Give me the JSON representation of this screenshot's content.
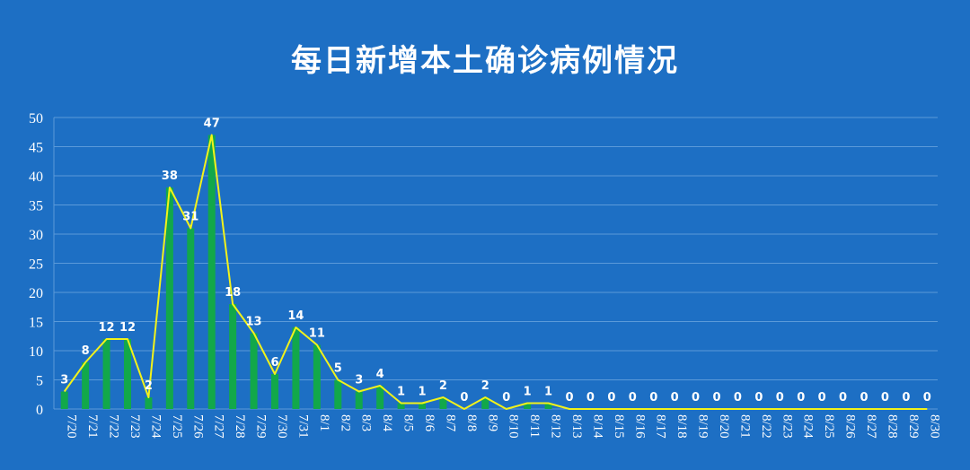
{
  "chart_data": {
    "type": "bar+line",
    "title": "每日新增本土确诊病例情况",
    "categories": [
      "7/20",
      "7/21",
      "7/22",
      "7/23",
      "7/24",
      "7/25",
      "7/26",
      "7/27",
      "7/28",
      "7/29",
      "7/30",
      "7/31",
      "8/1",
      "8/2",
      "8/3",
      "8/4",
      "8/5",
      "8/6",
      "8/7",
      "8/8",
      "8/9",
      "8/10",
      "8/11",
      "8/12",
      "8/13",
      "8/14",
      "8/15",
      "8/16",
      "8/17",
      "8/18",
      "8/19",
      "8/20",
      "8/21",
      "8/22",
      "8/23",
      "8/24",
      "8/25",
      "8/26",
      "8/27",
      "8/28",
      "8/29",
      "8/30"
    ],
    "values": [
      3,
      8,
      12,
      12,
      2,
      38,
      31,
      47,
      18,
      13,
      6,
      14,
      11,
      5,
      3,
      4,
      1,
      1,
      2,
      0,
      2,
      0,
      1,
      1,
      0,
      0,
      0,
      0,
      0,
      0,
      0,
      0,
      0,
      0,
      0,
      0,
      0,
      0,
      0,
      0,
      0,
      0
    ],
    "ylim": [
      0,
      50
    ],
    "yticks": [
      0,
      5,
      10,
      15,
      20,
      25,
      30,
      35,
      40,
      45,
      50
    ],
    "grid": true,
    "colors": {
      "background": "#1d6fc4",
      "bar": "#12a84a",
      "line": "#f2f21a",
      "gridline": "#5b9ad9",
      "text": "#ffffff"
    }
  }
}
